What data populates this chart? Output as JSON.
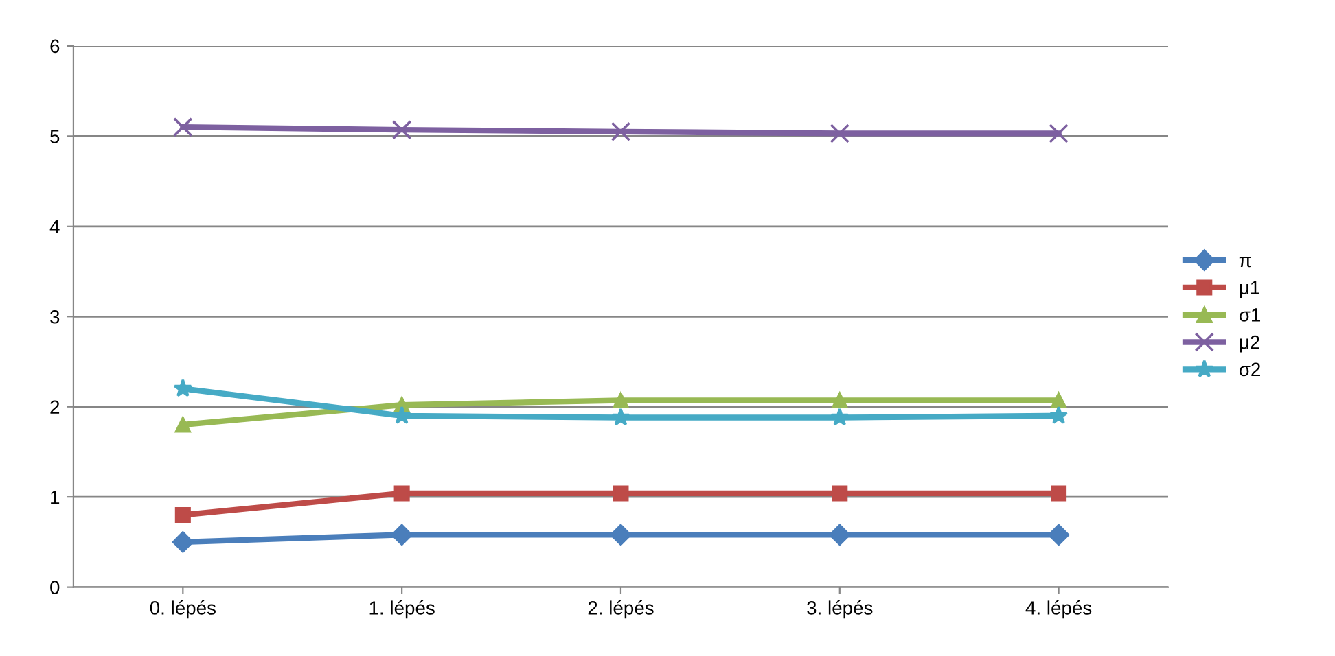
{
  "chart_data": {
    "type": "line",
    "categories": [
      "0. lépés",
      "1. lépés",
      "2. lépés",
      "3. lépés",
      "4. lépés"
    ],
    "series": [
      {
        "name": "π",
        "color": "#4a7ebb",
        "marker": "diamond",
        "values": [
          0.5,
          0.58,
          0.58,
          0.58,
          0.58
        ]
      },
      {
        "name": "μ1",
        "color": "#be4b48",
        "marker": "square",
        "values": [
          0.8,
          1.04,
          1.04,
          1.04,
          1.04
        ]
      },
      {
        "name": "σ1",
        "color": "#98b954",
        "marker": "triangle",
        "values": [
          1.8,
          2.02,
          2.07,
          2.07,
          2.07
        ]
      },
      {
        "name": "μ2",
        "color": "#7d60a0",
        "marker": "cross",
        "values": [
          5.1,
          5.07,
          5.05,
          5.03,
          5.03
        ]
      },
      {
        "name": "σ2",
        "color": "#46aac5",
        "marker": "star",
        "values": [
          2.2,
          1.9,
          1.88,
          1.88,
          1.9
        ]
      }
    ],
    "ylim": [
      0,
      6
    ],
    "yticks": [
      0,
      1,
      2,
      3,
      4,
      5,
      6
    ],
    "grid": "y",
    "legend": "right",
    "line_style": "solid"
  }
}
